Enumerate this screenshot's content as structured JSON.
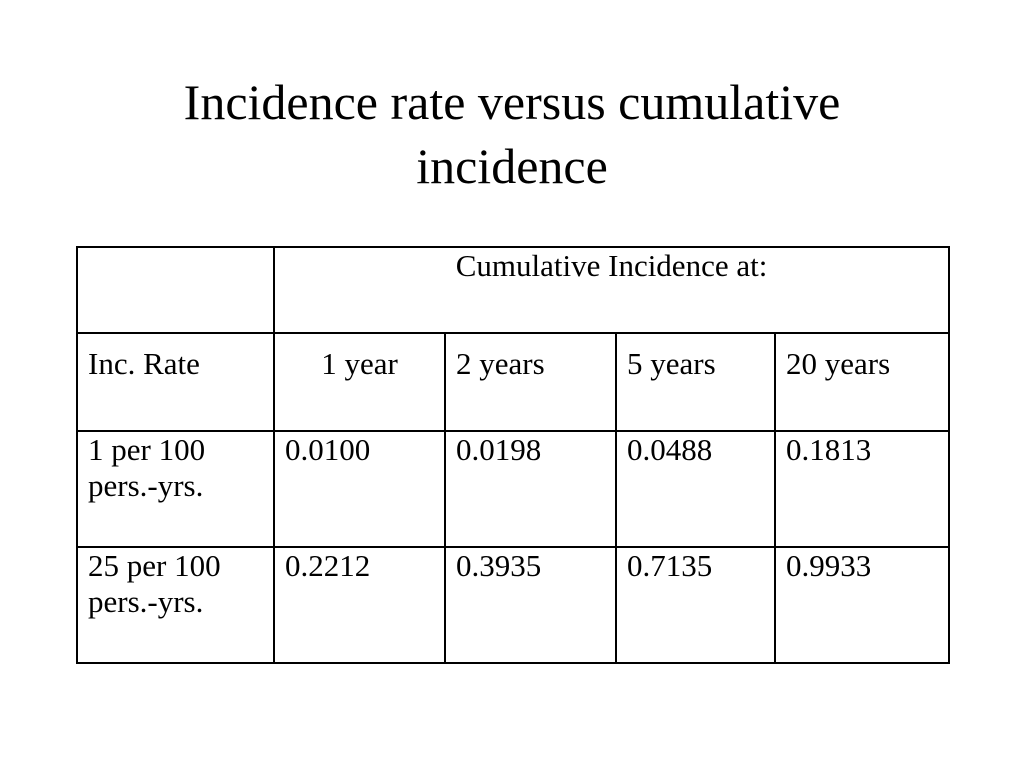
{
  "title": {
    "line1": "Incidence rate versus cumulative",
    "line2": "incidence"
  },
  "table": {
    "header": "Cumulative Incidence at:",
    "row_label_header": "Inc. Rate",
    "columns": [
      "1 year",
      "2 years",
      "5 years",
      "20 years"
    ],
    "rows": [
      {
        "rate_line1": "1 per 100",
        "rate_line2": "pers.-yrs.",
        "values": [
          "0.0100",
          "0.0198",
          "0.0488",
          "0.1813"
        ]
      },
      {
        "rate_line1": "25 per 100",
        "rate_line2": "pers.-yrs.",
        "values": [
          "0.2212",
          "0.3935",
          "0.7135",
          "0.9933"
        ]
      }
    ]
  }
}
